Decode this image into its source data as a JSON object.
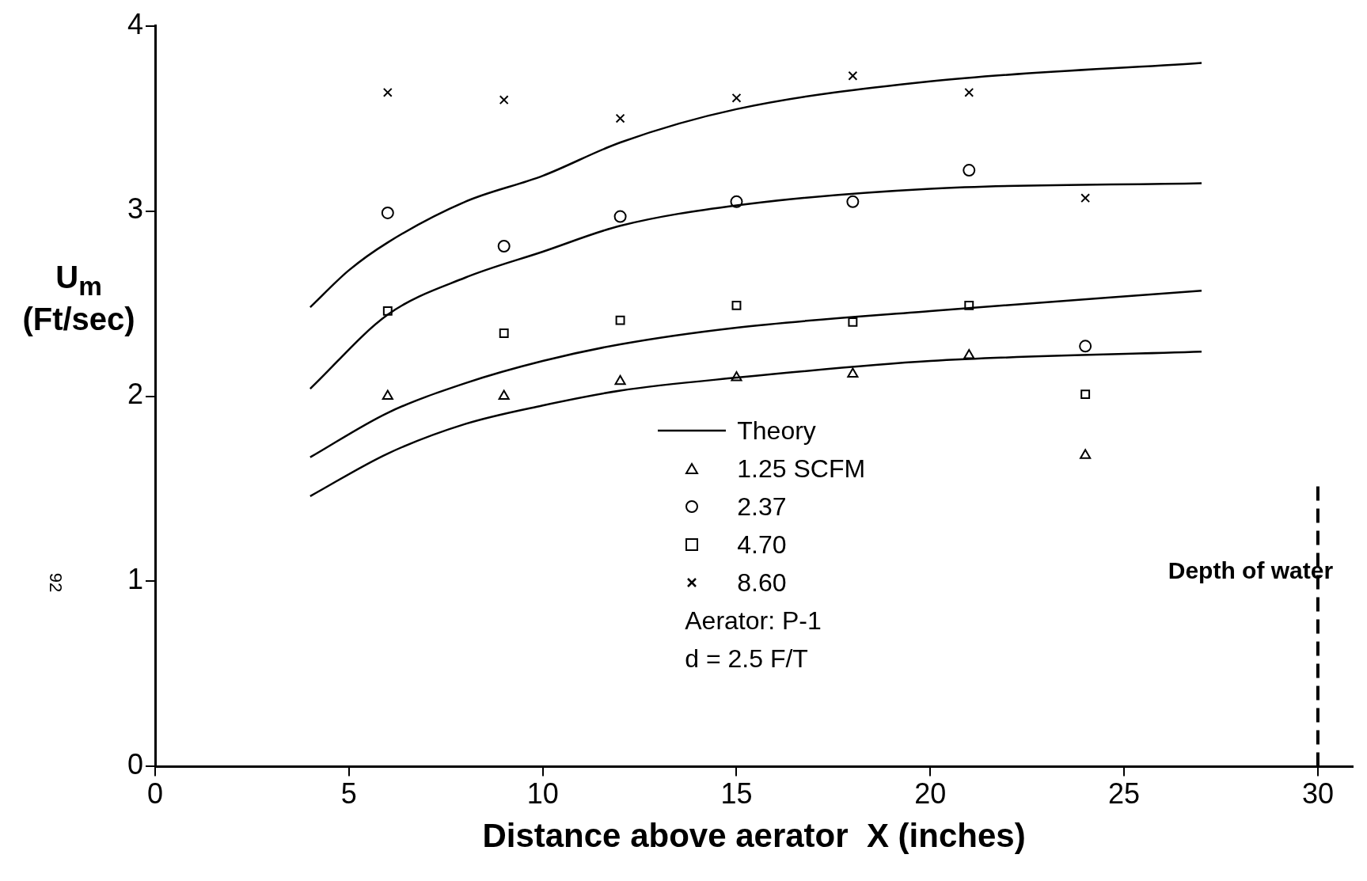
{
  "chart_data": {
    "type": "scatter",
    "xlabel": "Distance above aerator  X (inches)",
    "ylabel": "U$_{m}$ (Ft/sec)",
    "xlim": [
      0,
      30.9
    ],
    "xticks": [
      0,
      5,
      10,
      15,
      20,
      25,
      30
    ],
    "ylim": [
      0,
      4
    ],
    "yticks": [
      0,
      1,
      2,
      3,
      4
    ],
    "legend": "center",
    "series": [
      {
        "type": "line",
        "name": "Theory",
        "color": "#000000",
        "marker": "none",
        "line_style": "solid",
        "x": [
          4,
          5,
          6,
          8,
          10,
          12,
          15,
          20,
          27
        ],
        "values": [
          2.48,
          2.68,
          2.83,
          3.05,
          3.19,
          3.37,
          3.55,
          3.7,
          3.8
        ]
      },
      {
        "type": "line",
        "color": "#000000",
        "marker": "none",
        "line_style": "solid",
        "x": [
          4,
          6,
          8,
          10,
          12,
          15,
          20,
          27
        ],
        "values": [
          2.04,
          2.44,
          2.64,
          2.78,
          2.92,
          3.03,
          3.12,
          3.15
        ]
      },
      {
        "type": "line",
        "color": "#000000",
        "marker": "none",
        "line_style": "solid",
        "x": [
          4,
          6,
          8,
          10,
          12,
          15,
          20,
          27
        ],
        "values": [
          1.67,
          1.91,
          2.07,
          2.19,
          2.28,
          2.37,
          2.46,
          2.57
        ]
      },
      {
        "type": "line",
        "color": "#000000",
        "marker": "none",
        "line_style": "solid",
        "x": [
          4,
          6,
          8,
          10,
          12,
          15,
          20,
          27
        ],
        "values": [
          1.46,
          1.69,
          1.85,
          1.95,
          2.03,
          2.1,
          2.19,
          2.24
        ]
      },
      {
        "type": "scatter",
        "name": "1.25 SCFM",
        "color": "#000000",
        "marker": "triangle",
        "x": [
          6,
          9,
          12,
          15,
          18,
          21,
          24
        ],
        "values": [
          2.0,
          2.0,
          2.08,
          2.1,
          2.12,
          2.22,
          1.68
        ]
      },
      {
        "type": "scatter",
        "name": "2.37",
        "color": "#000000",
        "marker": "circle",
        "x": [
          6,
          9,
          12,
          15,
          18,
          21,
          24
        ],
        "values": [
          2.99,
          2.81,
          2.97,
          3.05,
          3.05,
          3.22,
          2.27
        ]
      },
      {
        "type": "scatter",
        "name": "4.70",
        "color": "#000000",
        "marker": "square",
        "x": [
          6,
          9,
          12,
          15,
          18,
          21,
          24
        ],
        "values": [
          2.46,
          2.34,
          2.41,
          2.49,
          2.4,
          2.49,
          2.01
        ]
      },
      {
        "type": "scatter",
        "name": "8.60",
        "color": "#000000",
        "marker": "cross",
        "x": [
          6,
          9,
          12,
          15,
          18,
          21,
          24
        ],
        "values": [
          3.64,
          3.6,
          3.5,
          3.61,
          3.73,
          3.64,
          3.07
        ]
      }
    ],
    "ref_lines": [
      {
        "axis": "x",
        "value": 30,
        "label": "Depth of water",
        "color": "#000000",
        "line_style": "dashed"
      }
    ],
    "annotations": [
      "Aerator:  P-1",
      "d = 2.5 F/T",
      "92"
    ]
  }
}
